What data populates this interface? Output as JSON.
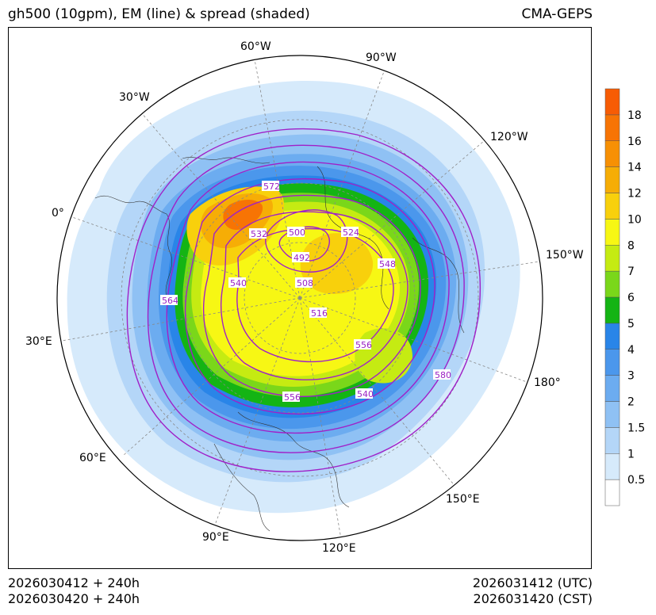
{
  "header": {
    "title": "gh500 (10gpm), EM (line) & spread (shaded)",
    "source": "CMA-GEPS"
  },
  "footer": {
    "init_utc": "2026030412 + 240h",
    "init_cst": "2026030420 + 240h",
    "valid_utc": "2026031412 (UTC)",
    "valid_cst": "2026031420 (CST)"
  },
  "map": {
    "projection": "north polar stereographic",
    "longitude_labels": [
      "60°W",
      "90°W",
      "30°W",
      "120°W",
      "0°",
      "150°W",
      "30°E",
      "180°",
      "60°E",
      "150°E",
      "90°E",
      "120°E"
    ],
    "contour_labels": [
      "572",
      "500",
      "532",
      "524",
      "492",
      "548",
      "540",
      "508",
      "564",
      "516",
      "556",
      "556",
      "540",
      "580"
    ]
  },
  "colorbar": {
    "levels": [
      "0.5",
      "1",
      "1.5",
      "2",
      "3",
      "4",
      "5",
      "6",
      "7",
      "8",
      "10",
      "12",
      "14",
      "16",
      "18"
    ],
    "colors": [
      "#ffffff",
      "#d6eafb",
      "#b4d6f8",
      "#8fc1f4",
      "#6cacf0",
      "#4b97ec",
      "#2985e8",
      "#14b414",
      "#7ad71a",
      "#c5eb12",
      "#f7f714",
      "#f8d00c",
      "#f6ad06",
      "#f79004",
      "#f77404",
      "#f75c04"
    ]
  }
}
